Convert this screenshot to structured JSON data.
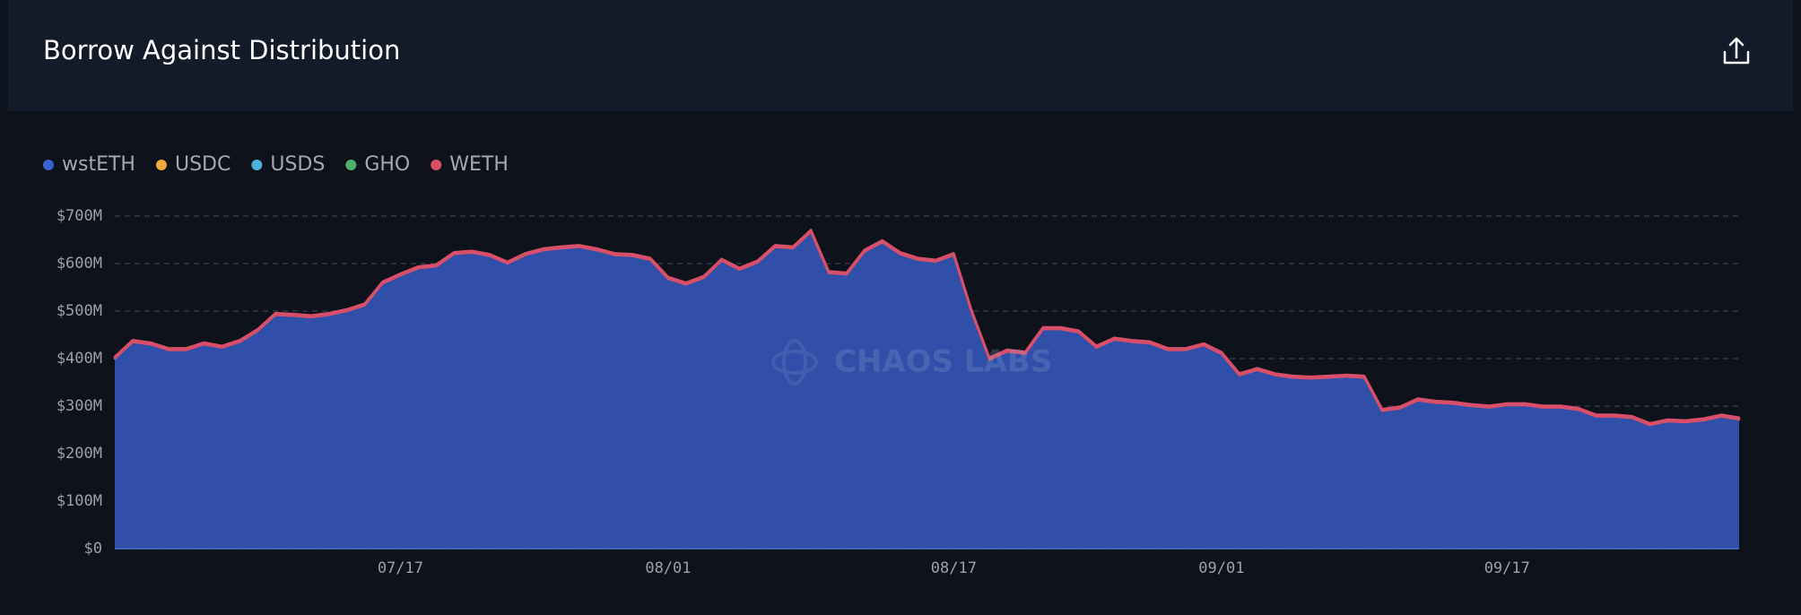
{
  "chart_data": {
    "type": "stacked-area",
    "title": "Borrow Against Distribution",
    "watermark": "CHAOS LABS",
    "categories": [
      null,
      null,
      null,
      null,
      null,
      null,
      null,
      null,
      null,
      null,
      null,
      null,
      null,
      null,
      null,
      null,
      "07/17",
      null,
      null,
      null,
      null,
      null,
      null,
      null,
      null,
      null,
      null,
      null,
      null,
      null,
      null,
      "08/01",
      null,
      null,
      null,
      null,
      null,
      null,
      null,
      null,
      null,
      null,
      null,
      null,
      null,
      null,
      null,
      "08/17",
      null,
      null,
      null,
      null,
      null,
      null,
      null,
      null,
      null,
      null,
      null,
      null,
      null,
      null,
      "09/01",
      null,
      null,
      null,
      null,
      null,
      null,
      null,
      null,
      null,
      null,
      null,
      null,
      null,
      null,
      null,
      "09/17",
      null,
      null,
      null,
      null,
      null,
      null,
      null,
      null,
      null,
      null,
      null,
      null,
      null
    ],
    "series": [
      {
        "name": "wstETH",
        "color": "#3b63d6",
        "values": [
          400,
          435,
          430,
          418,
          418,
          430,
          423,
          435,
          458,
          492,
          490,
          487,
          492,
          500,
          512,
          558,
          575,
          590,
          594,
          620,
          623,
          616,
          600,
          618,
          628,
          632,
          635,
          628,
          618,
          616,
          608,
          568,
          556,
          570,
          606,
          587,
          602,
          635,
          632,
          667,
          580,
          577,
          625,
          645,
          620,
          608,
          604,
          618,
          498,
          398,
          415,
          410,
          462,
          462,
          455,
          423,
          440,
          435,
          432,
          418,
          418,
          428,
          410,
          365,
          376,
          365,
          360,
          358,
          360,
          362,
          360,
          290,
          295,
          312,
          307,
          305,
          300,
          297,
          302,
          302,
          297,
          297,
          292,
          278,
          278,
          275,
          260,
          268,
          266,
          270,
          278,
          272
        ]
      },
      {
        "name": "USDC",
        "color": "#f0a93a",
        "values": [
          0,
          0,
          0,
          0,
          0,
          0,
          0,
          0,
          0,
          0,
          0,
          0,
          0,
          0,
          0,
          0,
          0,
          0,
          0,
          0,
          0,
          0,
          0,
          0,
          0,
          0,
          0,
          0,
          0,
          0,
          0,
          0,
          0,
          0,
          0,
          0,
          0,
          0,
          0,
          0,
          0,
          0,
          0,
          0,
          0,
          0,
          0,
          0,
          0,
          0,
          0,
          0,
          0,
          0,
          0,
          0,
          0,
          0,
          0,
          0,
          0,
          0,
          0,
          0,
          0,
          0,
          0,
          0,
          0,
          0,
          0,
          0,
          0,
          0,
          0,
          0,
          0,
          0,
          0,
          0,
          0,
          0,
          0,
          0,
          0,
          0,
          0,
          0,
          0,
          0,
          0,
          0
        ]
      },
      {
        "name": "USDS",
        "color": "#4fb3d9",
        "values": [
          0,
          0,
          0,
          0,
          0,
          0,
          0,
          0,
          0,
          0,
          0,
          0,
          0,
          0,
          0,
          0,
          0,
          0,
          0,
          0,
          0,
          0,
          0,
          0,
          0,
          0,
          0,
          0,
          0,
          0,
          0,
          0,
          0,
          0,
          0,
          0,
          0,
          0,
          0,
          0,
          0,
          0,
          0,
          0,
          0,
          0,
          0,
          0,
          0,
          0,
          0,
          0,
          0,
          0,
          0,
          0,
          0,
          0,
          0,
          0,
          0,
          0,
          0,
          0,
          0,
          0,
          0,
          0,
          0,
          0,
          0,
          0,
          0,
          0,
          0,
          0,
          0,
          0,
          0,
          0,
          0,
          0,
          0,
          0,
          0,
          0,
          0,
          0,
          0,
          0,
          0,
          0
        ]
      },
      {
        "name": "GHO",
        "color": "#4caf6e",
        "values": [
          0,
          0,
          0,
          0,
          0,
          0,
          0,
          0,
          0,
          0,
          0,
          0,
          0,
          0,
          0,
          0,
          0,
          0,
          0,
          0,
          0,
          0,
          0,
          0,
          0,
          0,
          0,
          0,
          0,
          0,
          0,
          0,
          0,
          0,
          0,
          0,
          0,
          0,
          0,
          0,
          0,
          0,
          0,
          0,
          0,
          0,
          0,
          0,
          0,
          0,
          0,
          0,
          0,
          0,
          0,
          0,
          0,
          0,
          0,
          0,
          0,
          0,
          0,
          0,
          0,
          0,
          0,
          0,
          0,
          0,
          0,
          0,
          0,
          0,
          0,
          0,
          0,
          0,
          0,
          0,
          0,
          0,
          0,
          0,
          0,
          0,
          0,
          0,
          0,
          0,
          0,
          0
        ]
      },
      {
        "name": "WETH",
        "color": "#d94f6a",
        "values": [
          4,
          4,
          4,
          4,
          4,
          4,
          4,
          4,
          4,
          4,
          4,
          4,
          4,
          4,
          4,
          4,
          4,
          4,
          4,
          4,
          4,
          4,
          4,
          4,
          4,
          4,
          4,
          4,
          4,
          4,
          4,
          4,
          4,
          4,
          4,
          4,
          4,
          4,
          4,
          4,
          4,
          4,
          4,
          4,
          4,
          4,
          4,
          4,
          4,
          4,
          4,
          4,
          4,
          4,
          4,
          4,
          4,
          4,
          4,
          4,
          4,
          4,
          4,
          4,
          4,
          4,
          4,
          4,
          4,
          4,
          4,
          4,
          4,
          4,
          4,
          4,
          4,
          4,
          4,
          4,
          4,
          4,
          4,
          4,
          4,
          4,
          4,
          4,
          4,
          4,
          4,
          4
        ]
      }
    ],
    "ylim": [
      0,
      700
    ],
    "yticks": [
      {
        "value": 0,
        "label": "$0"
      },
      {
        "value": 100,
        "label": "$100M"
      },
      {
        "value": 200,
        "label": "$200M"
      },
      {
        "value": 300,
        "label": "$300M"
      },
      {
        "value": 400,
        "label": "$400M"
      },
      {
        "value": 500,
        "label": "$500M"
      },
      {
        "value": 600,
        "label": "$600M"
      },
      {
        "value": 700,
        "label": "$700M"
      }
    ],
    "grid": true
  }
}
